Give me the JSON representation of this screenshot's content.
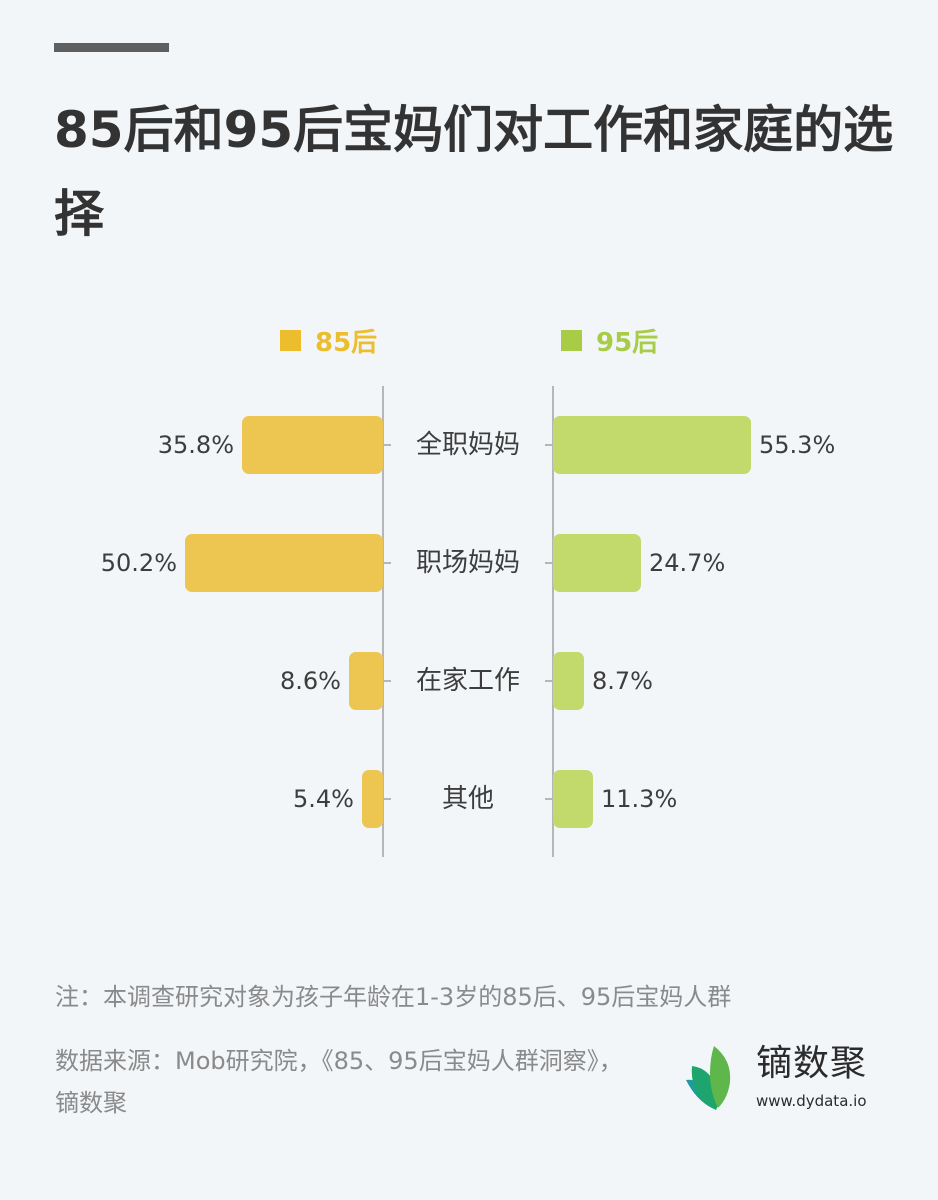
{
  "header": {
    "title": "85后和95后宝妈们对工作和家庭的选择"
  },
  "colors": {
    "series_85": "#ecc651",
    "series_95": "#c2d96c",
    "legend_85": "#ecbd2c",
    "legend_95": "#a8cc45",
    "background": "#f3f6f9",
    "text": "#3d3d3d",
    "axis": "#b6b6b8"
  },
  "legend": {
    "items": [
      {
        "label": "85后"
      },
      {
        "label": "95后"
      }
    ]
  },
  "chart_data": {
    "type": "bar",
    "orientation": "horizontal-butterfly",
    "title": "85后和95后宝妈们对工作和家庭的选择",
    "categories": [
      "全职妈妈",
      "职场妈妈",
      "在家工作",
      "其他"
    ],
    "series": [
      {
        "name": "85后",
        "values": [
          35.8,
          50.2,
          8.6,
          5.4
        ],
        "labels": [
          "35.8%",
          "50.2%",
          "8.6%",
          "5.4%"
        ],
        "side": "left"
      },
      {
        "name": "95后",
        "values": [
          55.3,
          24.7,
          8.7,
          11.3
        ],
        "labels": [
          "55.3%",
          "24.7%",
          "8.7%",
          "11.3%"
        ],
        "side": "right"
      }
    ],
    "unit": "%",
    "xlabel": "",
    "ylabel": "",
    "grid": false,
    "legend_position": "top"
  },
  "footer": {
    "note": "注：本调查研究对象为孩子年龄在1-3岁的85后、95后宝妈人群",
    "source": "数据来源：Mob研究院，《85、95后宝妈人群洞察》，镝数聚"
  },
  "logo": {
    "name": "镝数聚",
    "url": "www.dydata.io"
  }
}
